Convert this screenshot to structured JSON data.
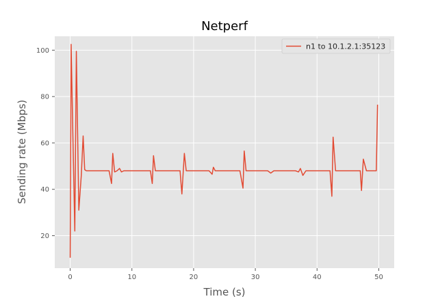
{
  "chart_data": {
    "type": "line",
    "title": "Netperf",
    "xlabel": "Time (s)",
    "ylabel": "Sending rate (Mbps)",
    "xlim": [
      -2.5,
      52.5
    ],
    "ylim": [
      6,
      106
    ],
    "xticks": [
      0,
      10,
      20,
      30,
      40,
      50
    ],
    "yticks": [
      20,
      40,
      60,
      80,
      100
    ],
    "grid": true,
    "legend_position": "top-right",
    "colors": {
      "line": "#E24A33",
      "plot_bg": "#E5E5E5",
      "grid": "#FFFFFF"
    },
    "series": [
      {
        "name": "n1 to 10.1.2.1:35123",
        "x": [
          0,
          0.15,
          0.4,
          0.75,
          1.0,
          1.4,
          1.8,
          2.1,
          2.35,
          2.6,
          3.0,
          3.5,
          4.0,
          4.5,
          5.0,
          5.5,
          6.0,
          6.3,
          6.7,
          6.9,
          7.2,
          7.6,
          8.0,
          8.3,
          8.7,
          9.2,
          10.0,
          11.0,
          12.0,
          12.5,
          13.0,
          13.3,
          13.5,
          13.8,
          14.5,
          15.5,
          16.5,
          17.5,
          17.8,
          18.1,
          18.5,
          18.8,
          19.5,
          20.5,
          21.5,
          22.5,
          23.0,
          23.2,
          23.5,
          24.0,
          25.0,
          26.0,
          27.0,
          27.5,
          28.0,
          28.2,
          28.5,
          29.0,
          30.0,
          31.0,
          32.0,
          32.5,
          33.0,
          34.0,
          35.0,
          36.0,
          36.5,
          37.0,
          37.3,
          37.7,
          38.2,
          39.0,
          40.0,
          41.0,
          41.8,
          42.1,
          42.4,
          42.6,
          43.0,
          43.5,
          44.0,
          45.0,
          46.0,
          46.5,
          47.0,
          47.2,
          47.5,
          48.0,
          48.5,
          49.0,
          49.3,
          49.6,
          49.8
        ],
        "values": [
          10.5,
          102.5,
          68,
          22,
          99.5,
          31,
          46,
          63,
          48.5,
          48,
          48,
          48,
          48,
          48,
          48,
          48,
          48,
          48,
          42.5,
          55.5,
          47.5,
          48,
          49,
          47.5,
          48,
          48,
          48,
          48,
          48,
          48,
          48,
          42.5,
          54.5,
          48,
          48,
          48,
          48,
          48,
          48,
          38,
          55.5,
          48,
          48,
          48,
          48,
          48,
          46.5,
          49.5,
          48,
          48,
          48,
          48,
          48,
          48,
          40.5,
          56.5,
          48,
          48,
          48,
          48,
          48,
          47,
          48,
          48,
          48,
          48,
          48,
          47.5,
          49,
          46,
          48,
          48,
          48,
          48,
          48,
          48,
          37,
          62.5,
          48,
          48,
          48,
          48,
          48,
          48,
          48,
          39.5,
          53,
          48,
          48,
          48,
          48,
          48,
          76.5
        ]
      }
    ]
  }
}
